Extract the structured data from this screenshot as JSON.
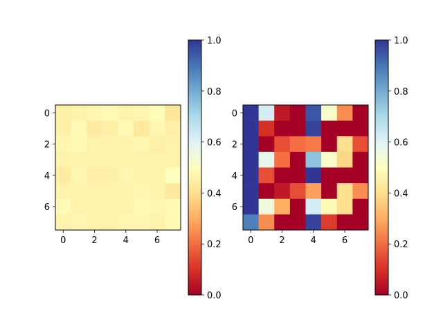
{
  "colors": {
    "background": "#ffffff",
    "axis": "#000000"
  },
  "chart_data": [
    {
      "type": "heatmap",
      "colormap": "RdYlBu",
      "rows": 8,
      "cols": 8,
      "x_ticks": [
        0,
        2,
        4,
        6
      ],
      "y_ticks": [
        0,
        2,
        4,
        6
      ],
      "xlim": [
        -0.5,
        7.5
      ],
      "ylim": [
        7.5,
        -0.5
      ],
      "values": [
        [
          0.45,
          0.46,
          0.47,
          0.48,
          0.46,
          0.47,
          0.49,
          0.42
        ],
        [
          0.45,
          0.48,
          0.44,
          0.45,
          0.48,
          0.43,
          0.47,
          0.45
        ],
        [
          0.47,
          0.48,
          0.46,
          0.46,
          0.46,
          0.47,
          0.45,
          0.46
        ],
        [
          0.46,
          0.46,
          0.46,
          0.46,
          0.46,
          0.46,
          0.46,
          0.46
        ],
        [
          0.44,
          0.47,
          0.45,
          0.45,
          0.47,
          0.46,
          0.46,
          0.5
        ],
        [
          0.46,
          0.46,
          0.46,
          0.46,
          0.46,
          0.47,
          0.46,
          0.43
        ],
        [
          0.48,
          0.46,
          0.46,
          0.46,
          0.46,
          0.48,
          0.47,
          0.48
        ],
        [
          0.46,
          0.47,
          0.46,
          0.46,
          0.47,
          0.47,
          0.46,
          0.48
        ]
      ],
      "colorbar": {
        "range": [
          0.0,
          1.0
        ],
        "ticks": [
          "0.0",
          "0.2",
          "0.4",
          "0.6",
          "0.8",
          "1.0"
        ]
      }
    },
    {
      "type": "heatmap",
      "colormap": "RdYlBu",
      "rows": 8,
      "cols": 8,
      "x_ticks": [
        0,
        2,
        4,
        6
      ],
      "y_ticks": [
        0,
        2,
        4,
        6
      ],
      "xlim": [
        -0.5,
        7.5
      ],
      "ylim": [
        7.5,
        -0.5
      ],
      "values": [
        [
          1.0,
          0.62,
          0.05,
          0.0,
          0.95,
          0.52,
          0.25,
          0.0
        ],
        [
          1.0,
          0.1,
          0.0,
          0.0,
          0.98,
          0.0,
          0.0,
          0.0
        ],
        [
          1.0,
          0.0,
          0.15,
          0.2,
          0.22,
          0.0,
          0.4,
          0.15
        ],
        [
          1.0,
          0.58,
          0.2,
          0.0,
          0.75,
          0.52,
          0.38,
          0.0
        ],
        [
          1.0,
          0.15,
          0.0,
          0.0,
          1.0,
          0.0,
          0.0,
          0.0
        ],
        [
          1.0,
          0.0,
          0.05,
          0.15,
          0.28,
          0.0,
          0.4,
          0.25
        ],
        [
          1.0,
          0.55,
          0.3,
          0.0,
          0.62,
          0.48,
          0.4,
          0.0
        ],
        [
          0.88,
          0.25,
          0.0,
          0.0,
          0.98,
          0.12,
          0.0,
          0.0
        ]
      ],
      "colorbar": {
        "range": [
          0.0,
          1.0
        ],
        "ticks": [
          "0.0",
          "0.2",
          "0.4",
          "0.6",
          "0.8",
          "1.0"
        ]
      }
    }
  ]
}
